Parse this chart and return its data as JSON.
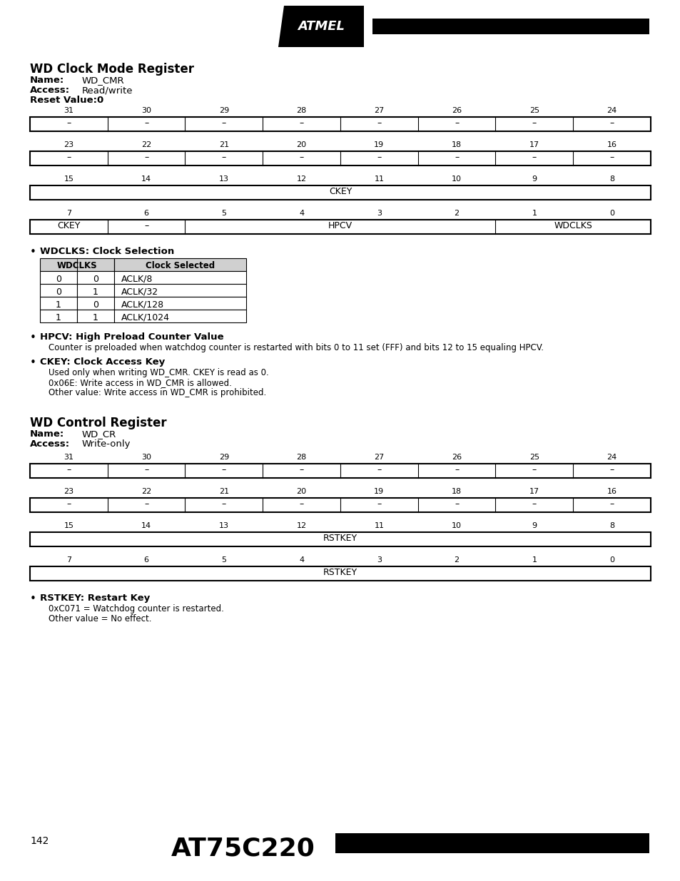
{
  "bg_color": "#ffffff",
  "page_width": 9.54,
  "page_height": 12.35,
  "section1_title": "WD Clock Mode Register",
  "section1_name_label": "Name:",
  "section1_name_value": "WD_CMR",
  "section1_access_label": "Access:",
  "section1_access_value": "Read/write",
  "section1_reset_label": "Reset Value:0",
  "section2_title": "WD Control Register",
  "section2_name_label": "Name:",
  "section2_name_value": "WD_CR",
  "section2_access_label": "Access:",
  "section2_access_value": "Write-only",
  "reg_row1_bits": [
    "31",
    "30",
    "29",
    "28",
    "27",
    "26",
    "25",
    "24"
  ],
  "reg_row1_vals": [
    "–",
    "–",
    "–",
    "–",
    "–",
    "–",
    "–",
    "–"
  ],
  "reg_row2_bits": [
    "23",
    "22",
    "21",
    "20",
    "19",
    "18",
    "17",
    "16"
  ],
  "reg_row2_vals": [
    "–",
    "–",
    "–",
    "–",
    "–",
    "–",
    "–",
    "–"
  ],
  "reg_row3_bits": [
    "15",
    "14",
    "13",
    "12",
    "11",
    "10",
    "9",
    "8"
  ],
  "reg_row4_bits": [
    "7",
    "6",
    "5",
    "4",
    "3",
    "2",
    "1",
    "0"
  ],
  "cmr_row3_label": "CKEY",
  "cmr_row4_vals": [
    [
      "CKEY",
      1
    ],
    [
      "–",
      1
    ],
    [
      "HPCV",
      4
    ],
    [
      "WDCLKS",
      2
    ]
  ],
  "cr_row3_label": "RSTKEY",
  "cr_row4_label": "RSTKEY",
  "bullet1_title": "WDCLKS: Clock Selection",
  "wdclks_table_rows": [
    [
      "0",
      "0",
      "ACLK/8"
    ],
    [
      "0",
      "1",
      "ACLK/32"
    ],
    [
      "1",
      "0",
      "ACLK/128"
    ],
    [
      "1",
      "1",
      "ACLK/1024"
    ]
  ],
  "bullet2_title": "HPCV: High Preload Counter Value",
  "bullet2_text": "Counter is preloaded when watchdog counter is restarted with bits 0 to 11 set (FFF) and bits 12 to 15 equaling HPCV.",
  "bullet3_title": "CKEY: Clock Access Key",
  "bullet3_lines": [
    "Used only when writing WD_CMR. CKEY is read as 0.",
    "0x06E: Write access in WD_CMR is allowed.",
    "Other value: Write access in WD_CMR is prohibited."
  ],
  "bullet4_title": "RSTKEY: Restart Key",
  "bullet4_lines": [
    "0xC071 = Watchdog counter is restarted.",
    "Other value = No effect."
  ],
  "footer_page": "142",
  "footer_chip": "AT75C220"
}
